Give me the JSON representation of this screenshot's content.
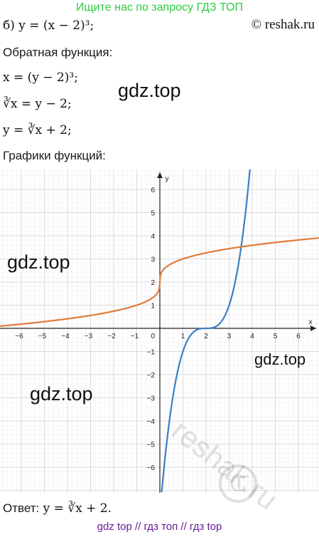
{
  "banner": "Ищите нас по запросу ГДЗ ТОП",
  "copyright": "© reshak.ru",
  "problem": {
    "label": "б)",
    "equation": "y = (x − 2)³;"
  },
  "inverse_heading": "Обратная функция:",
  "steps": [
    "x = (y − 2)³;",
    "∛x = y − 2;",
    "y = ∛x + 2;"
  ],
  "graphs_heading": "Графики функций:",
  "answer": {
    "label": "Ответ:",
    "equation": "y = ∛x + 2."
  },
  "watermarks": [
    "gdz.top",
    "gdz.top",
    "gdz.top",
    "gdz.top",
    "reshak.ru"
  ],
  "bottom_links": "gdz top  //  гдз топ  //  гдз top",
  "colors": {
    "banner": "#2ecc40",
    "orange_curve": "#e07b39",
    "blue_curve": "#3a7fc1",
    "grid": "#d9d9d9",
    "links": "#6a1b9a"
  },
  "chart_data": {
    "type": "line",
    "xlabel": "x",
    "ylabel": "y",
    "xlim": [
      -7,
      7
    ],
    "ylim": [
      -7,
      7
    ],
    "grid": true,
    "x_ticks": [
      -6,
      -5,
      -4,
      -3,
      -2,
      -1,
      1,
      2,
      3,
      4,
      5,
      6
    ],
    "y_ticks": [
      -6,
      -5,
      -4,
      -3,
      -2,
      -1,
      1,
      2,
      3,
      4,
      5,
      6
    ],
    "origin_label": "0",
    "series": [
      {
        "function": "y = (x − 2)^3",
        "color": "#3a7fc1",
        "x": [
          0.1,
          0.5,
          1.0,
          1.5,
          2.0,
          2.5,
          3.0,
          3.5,
          3.9
        ],
        "y": [
          -6.86,
          -3.38,
          -1.0,
          -0.13,
          0.0,
          0.13,
          1.0,
          3.38,
          6.86
        ]
      },
      {
        "function": "y = ∛x + 2",
        "color": "#e07b39",
        "x": [
          -7,
          -6,
          -5,
          -4,
          -3,
          -2,
          -1,
          0,
          1,
          2,
          3,
          4,
          5,
          6,
          7
        ],
        "y": [
          0.09,
          0.18,
          0.29,
          0.41,
          0.56,
          0.74,
          1.0,
          2.0,
          3.0,
          3.26,
          3.44,
          3.59,
          3.71,
          3.82,
          3.91
        ]
      }
    ]
  }
}
